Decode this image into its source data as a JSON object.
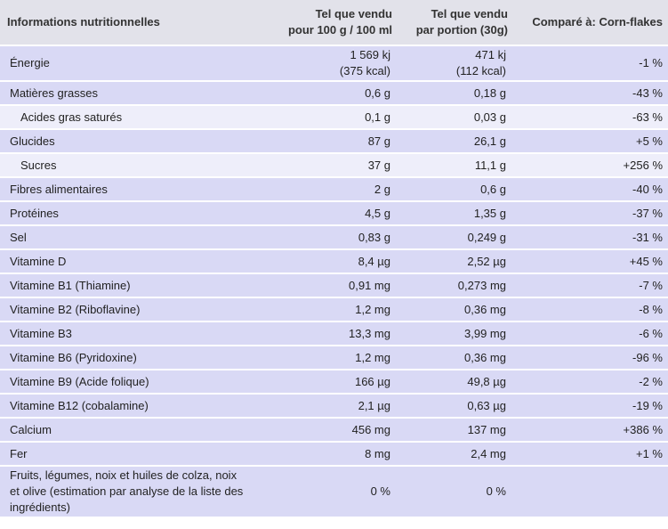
{
  "header": {
    "title": "Informations nutritionnelles",
    "col_100g_line1": "Tel que vendu",
    "col_100g_line2": "pour 100 g / 100 ml",
    "col_portion_line1": "Tel que vendu",
    "col_portion_line2": "par portion (30g)",
    "col_compare": "Comparé à: Corn-flakes"
  },
  "energy": {
    "label": "Énergie",
    "per100_kj": "1 569 kj",
    "per100_kcal": "(375 kcal)",
    "portion_kj": "471 kj",
    "portion_kcal": "(112 kcal)",
    "compare": "-1 %"
  },
  "rows": [
    {
      "label": "Matières grasses",
      "per100": "0,6 g",
      "portion": "0,18 g",
      "compare": "-43 %"
    },
    {
      "label": "Acides gras saturés",
      "per100": "0,1 g",
      "portion": "0,03 g",
      "compare": "-63 %"
    },
    {
      "label": "Glucides",
      "per100": "87 g",
      "portion": "26,1 g",
      "compare": "+5 %"
    },
    {
      "label": "Sucres",
      "per100": "37 g",
      "portion": "11,1 g",
      "compare": "+256 %"
    },
    {
      "label": "Fibres alimentaires",
      "per100": "2 g",
      "portion": "0,6 g",
      "compare": "-40 %"
    },
    {
      "label": "Protéines",
      "per100": "4,5 g",
      "portion": "1,35 g",
      "compare": "-37 %"
    },
    {
      "label": "Sel",
      "per100": "0,83 g",
      "portion": "0,249 g",
      "compare": "-31 %"
    },
    {
      "label": "Vitamine D",
      "per100": "8,4 µg",
      "portion": "2,52 µg",
      "compare": "+45 %"
    },
    {
      "label": "Vitamine B1 (Thiamine)",
      "per100": "0,91 mg",
      "portion": "0,273 mg",
      "compare": "-7 %"
    },
    {
      "label": "Vitamine B2 (Riboflavine)",
      "per100": "1,2 mg",
      "portion": "0,36 mg",
      "compare": "-8 %"
    },
    {
      "label": "Vitamine B3",
      "per100": "13,3 mg",
      "portion": "3,99 mg",
      "compare": "-6 %"
    },
    {
      "label": "Vitamine B6 (Pyridoxine)",
      "per100": "1,2 mg",
      "portion": "0,36 mg",
      "compare": "-96 %"
    },
    {
      "label": "Vitamine B9 (Acide folique)",
      "per100": "166 µg",
      "portion": "49,8 µg",
      "compare": "-2 %"
    },
    {
      "label": "Vitamine B12 (cobalamine)",
      "per100": "2,1 µg",
      "portion": "0,63 µg",
      "compare": "-19 %"
    },
    {
      "label": "Calcium",
      "per100": "456 mg",
      "portion": "137 mg",
      "compare": "+386 %"
    },
    {
      "label": "Fer",
      "per100": "8 mg",
      "portion": "2,4 mg",
      "compare": "+1 %"
    }
  ],
  "fruits": {
    "label_line1": "Fruits, légumes, noix et huiles de colza, noix",
    "label_line2": "et olive (estimation par analyse de la liste des",
    "label_line3": "ingrédients)",
    "per100": "0 %",
    "portion": "0 %",
    "compare": ""
  }
}
